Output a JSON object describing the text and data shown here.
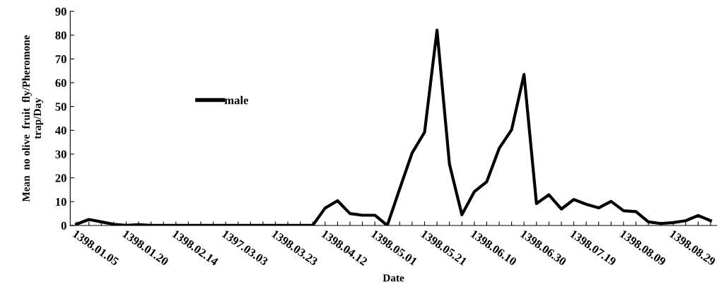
{
  "chart_data": {
    "type": "line",
    "xlabel": "Date",
    "ylabel": "Mean  no olive  fruit  fly/Pheromone\ntrap/Day",
    "categories": [
      "1398.01.05",
      null,
      null,
      null,
      "1398.01.20",
      null,
      null,
      null,
      "1398.02.14",
      null,
      null,
      null,
      "1397.03.03",
      null,
      null,
      null,
      "1398.03.23",
      null,
      null,
      null,
      "1398.04.12",
      null,
      null,
      null,
      "1398.05.01",
      null,
      null,
      null,
      "1398.05.21",
      null,
      null,
      null,
      "1398.06.10",
      null,
      null,
      null,
      "1398.06.30",
      null,
      null,
      null,
      "1398.07.19",
      null,
      null,
      null,
      "1398.08.09",
      null,
      null,
      null,
      "1398.08.29",
      null,
      null,
      null
    ],
    "series": [
      {
        "name": "male",
        "color": "#000000",
        "values": [
          0.5,
          2.5,
          1.5,
          0.5,
          0,
          0.3,
          0,
          0,
          0,
          0,
          0,
          0,
          0,
          0,
          0,
          0,
          0,
          0,
          0,
          0,
          7.3,
          10.4,
          5,
          4.3,
          4.3,
          0,
          15.4,
          30.5,
          39.2,
          82.1,
          25.8,
          4.5,
          14.2,
          18.4,
          32.4,
          40.2,
          63.5,
          9.2,
          12.9,
          6.9,
          10.9,
          8.9,
          7.4,
          10.1,
          6.2,
          5.8,
          1.5,
          0.8,
          1.2,
          2,
          4.2,
          2
        ]
      }
    ],
    "ylim": [
      0,
      90
    ],
    "yticks": [
      0,
      10,
      20,
      30,
      40,
      50,
      60,
      70,
      80,
      90
    ],
    "grid": false,
    "legend": "center left",
    "marker": "none",
    "line_style": "solid"
  }
}
